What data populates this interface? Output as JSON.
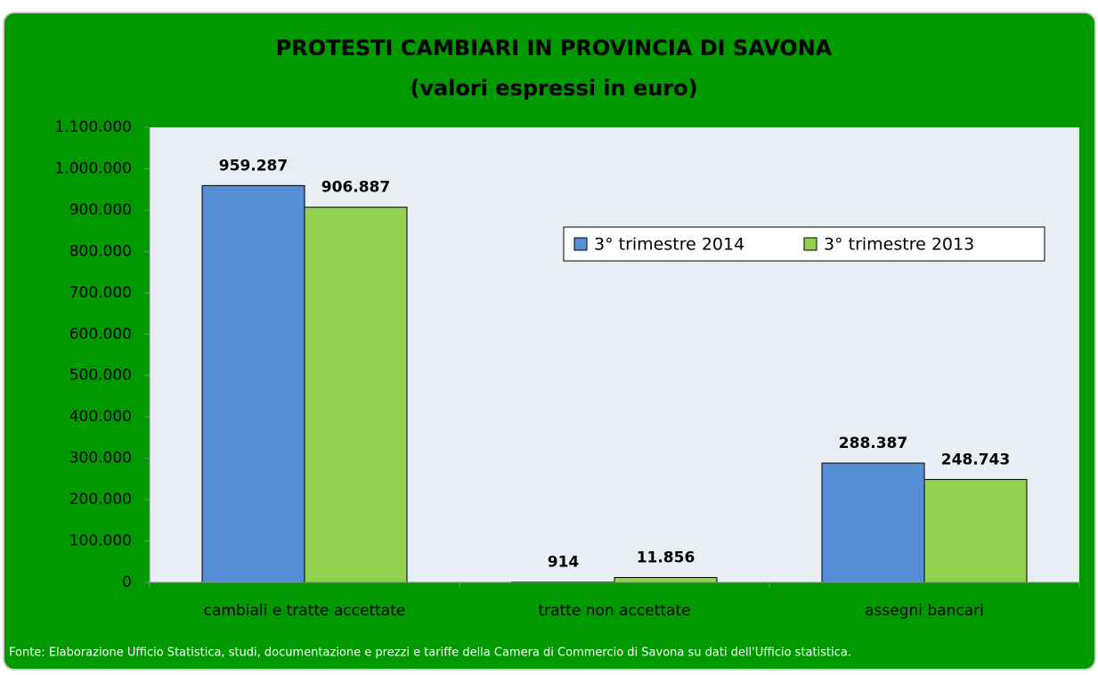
{
  "chart_data": {
    "type": "bar",
    "title": "PROTESTI CAMBIARI IN PROVINCIA DI SAVONA",
    "subtitle": "(valori espressi in euro)",
    "categories": [
      "cambiali e tratte accettate",
      "tratte non accettate",
      "assegni bancari"
    ],
    "series": [
      {
        "name": "3° trimestre 2014",
        "color": "#558ed5",
        "values": [
          959287,
          914,
          288387
        ],
        "value_labels": [
          "959.287",
          "914",
          "288.387"
        ]
      },
      {
        "name": "3° trimestre 2013",
        "color": "#92d050",
        "values": [
          906887,
          11856,
          248743
        ],
        "value_labels": [
          "906.887",
          "11.856",
          "248.743"
        ]
      }
    ],
    "ylim": [
      0,
      1100000
    ],
    "yticks": [
      0,
      {
        "value": 100000,
        "label": "100.000"
      },
      {
        "value": 200000,
        "label": "200.000"
      },
      {
        "value": 300000,
        "label": "300.000"
      },
      {
        "value": 400000,
        "label": "400.000"
      },
      {
        "value": 500000,
        "label": "500.000"
      },
      {
        "value": 600000,
        "label": "600.000"
      },
      {
        "value": 700000,
        "label": "700.000"
      },
      {
        "value": 800000,
        "label": "800.000"
      },
      {
        "value": 900000,
        "label": "900.000"
      },
      {
        "value": 1000000,
        "label": "1.000.000"
      },
      {
        "value": 1100000,
        "label": "1.100.000"
      }
    ],
    "legend": "top-right",
    "source": "Fonte: Elaborazione Ufficio Statistica, studi, documentazione e prezzi e tariffe della Camera di Commercio  di Savona su dati dell'Ufficio statistica."
  }
}
